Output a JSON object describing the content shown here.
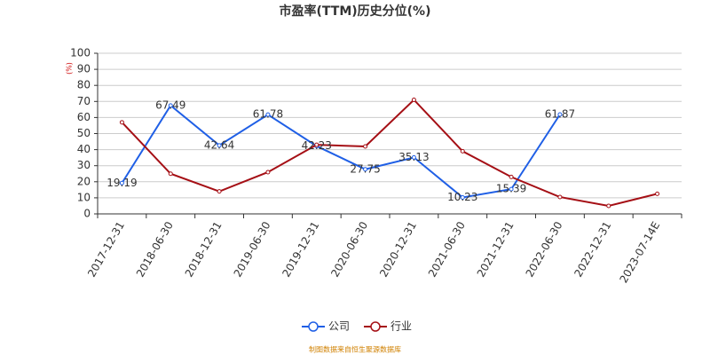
{
  "chart_data": {
    "type": "line",
    "title": "市盈率(TTM)历史分位(%)",
    "y_label": "(%)",
    "source": "制图数据来自恒生聚源数据库",
    "categories": [
      "2017-12-31",
      "2018-06-30",
      "2018-12-31",
      "2019-06-30",
      "2019-12-31",
      "2020-06-30",
      "2020-12-31",
      "2021-06-30",
      "2021-12-31",
      "2022-06-30",
      "2022-12-31",
      "2023-07-14E"
    ],
    "series": [
      {
        "name": "公司",
        "color": "#1f5fe6",
        "values": [
          19.19,
          67.49,
          42.64,
          61.78,
          42.23,
          27.75,
          35.13,
          10.23,
          15.39,
          61.87,
          null,
          null
        ],
        "data_labels": true
      },
      {
        "name": "行业",
        "color": "#a50f15",
        "values": [
          57,
          25,
          14,
          26,
          43,
          42,
          71,
          39,
          23,
          10.5,
          5,
          12.5
        ],
        "data_labels": false
      }
    ],
    "ylim": [
      0,
      100
    ],
    "yticks": [
      0,
      10,
      20,
      30,
      40,
      50,
      60,
      70,
      80,
      90,
      100
    ],
    "grid": true
  }
}
